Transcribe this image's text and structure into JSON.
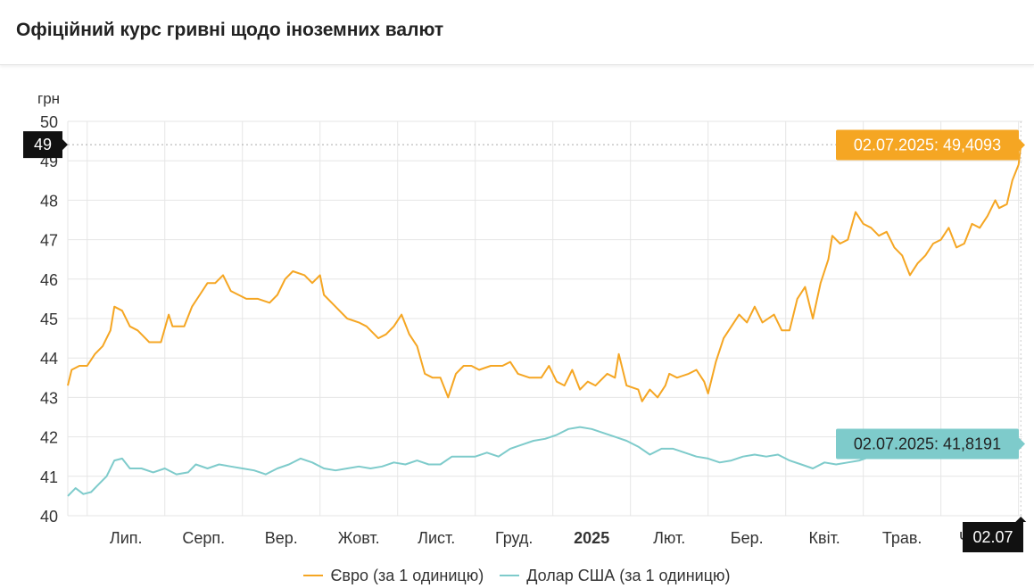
{
  "header": {
    "title": "Офіційний курс гривні щодо іноземних валют"
  },
  "chart_data": {
    "type": "line",
    "ylabel": "грн",
    "ylim": [
      40,
      50
    ],
    "yticks": [
      40,
      41,
      42,
      43,
      44,
      45,
      46,
      47,
      48,
      49,
      50
    ],
    "xticks": [
      {
        "label": "Лип.",
        "x": 0.5,
        "bold": false
      },
      {
        "label": "Серп.",
        "x": 1.5,
        "bold": false
      },
      {
        "label": "Вер.",
        "x": 2.5,
        "bold": false
      },
      {
        "label": "Жовт.",
        "x": 3.5,
        "bold": false
      },
      {
        "label": "Лист.",
        "x": 4.5,
        "bold": false
      },
      {
        "label": "Груд.",
        "x": 5.5,
        "bold": false
      },
      {
        "label": "2025",
        "x": 6.5,
        "bold": true
      },
      {
        "label": "Лют.",
        "x": 7.5,
        "bold": false
      },
      {
        "label": "Бер.",
        "x": 8.5,
        "bold": false
      },
      {
        "label": "Квіт.",
        "x": 9.5,
        "bold": false
      },
      {
        "label": "Трав.",
        "x": 10.5,
        "bold": false
      },
      {
        "label": "Черв.",
        "x": 11.5,
        "bold": false
      }
    ],
    "x_unit": "months since Jul 1, 2024",
    "xlim": [
      -0.25,
      12.05
    ],
    "crosshair": {
      "y_label": "49",
      "y_value": 49.4093,
      "x_label": "02.07",
      "x_value": 12.03
    },
    "series": [
      {
        "name": "Євро (за 1 одиницю)",
        "color": "#f5a623",
        "tooltip": "02.07.2025: 49,4093",
        "points": [
          [
            -0.25,
            43.3
          ],
          [
            -0.2,
            43.7
          ],
          [
            -0.1,
            43.8
          ],
          [
            0.0,
            43.8
          ],
          [
            0.1,
            44.1
          ],
          [
            0.2,
            44.3
          ],
          [
            0.3,
            44.7
          ],
          [
            0.35,
            45.3
          ],
          [
            0.45,
            45.2
          ],
          [
            0.55,
            44.8
          ],
          [
            0.65,
            44.7
          ],
          [
            0.8,
            44.4
          ],
          [
            0.95,
            44.4
          ],
          [
            1.05,
            45.1
          ],
          [
            1.1,
            44.8
          ],
          [
            1.25,
            44.8
          ],
          [
            1.35,
            45.3
          ],
          [
            1.45,
            45.6
          ],
          [
            1.55,
            45.9
          ],
          [
            1.65,
            45.9
          ],
          [
            1.75,
            46.1
          ],
          [
            1.85,
            45.7
          ],
          [
            1.95,
            45.6
          ],
          [
            2.05,
            45.5
          ],
          [
            2.2,
            45.5
          ],
          [
            2.35,
            45.4
          ],
          [
            2.45,
            45.6
          ],
          [
            2.55,
            46.0
          ],
          [
            2.65,
            46.2
          ],
          [
            2.8,
            46.1
          ],
          [
            2.9,
            45.9
          ],
          [
            3.0,
            46.1
          ],
          [
            3.05,
            45.6
          ],
          [
            3.2,
            45.3
          ],
          [
            3.35,
            45.0
          ],
          [
            3.5,
            44.9
          ],
          [
            3.6,
            44.8
          ],
          [
            3.75,
            44.5
          ],
          [
            3.85,
            44.6
          ],
          [
            3.95,
            44.8
          ],
          [
            4.05,
            45.1
          ],
          [
            4.15,
            44.6
          ],
          [
            4.25,
            44.3
          ],
          [
            4.35,
            43.6
          ],
          [
            4.45,
            43.5
          ],
          [
            4.55,
            43.5
          ],
          [
            4.65,
            43.0
          ],
          [
            4.75,
            43.6
          ],
          [
            4.85,
            43.8
          ],
          [
            4.95,
            43.8
          ],
          [
            5.05,
            43.7
          ],
          [
            5.2,
            43.8
          ],
          [
            5.35,
            43.8
          ],
          [
            5.45,
            43.9
          ],
          [
            5.55,
            43.6
          ],
          [
            5.7,
            43.5
          ],
          [
            5.85,
            43.5
          ],
          [
            5.95,
            43.8
          ],
          [
            6.05,
            43.4
          ],
          [
            6.15,
            43.3
          ],
          [
            6.25,
            43.7
          ],
          [
            6.35,
            43.2
          ],
          [
            6.45,
            43.4
          ],
          [
            6.55,
            43.3
          ],
          [
            6.7,
            43.6
          ],
          [
            6.8,
            43.5
          ],
          [
            6.85,
            44.1
          ],
          [
            6.95,
            43.3
          ],
          [
            7.1,
            43.2
          ],
          [
            7.15,
            42.9
          ],
          [
            7.25,
            43.2
          ],
          [
            7.35,
            43.0
          ],
          [
            7.45,
            43.3
          ],
          [
            7.5,
            43.6
          ],
          [
            7.6,
            43.5
          ],
          [
            7.75,
            43.6
          ],
          [
            7.85,
            43.7
          ],
          [
            7.95,
            43.4
          ],
          [
            8.0,
            43.1
          ],
          [
            8.1,
            43.9
          ],
          [
            8.2,
            44.5
          ],
          [
            8.3,
            44.8
          ],
          [
            8.4,
            45.1
          ],
          [
            8.5,
            44.9
          ],
          [
            8.6,
            45.3
          ],
          [
            8.7,
            44.9
          ],
          [
            8.85,
            45.1
          ],
          [
            8.95,
            44.7
          ],
          [
            9.05,
            44.7
          ],
          [
            9.15,
            45.5
          ],
          [
            9.25,
            45.8
          ],
          [
            9.35,
            45.0
          ],
          [
            9.45,
            45.9
          ],
          [
            9.55,
            46.5
          ],
          [
            9.6,
            47.1
          ],
          [
            9.7,
            46.9
          ],
          [
            9.8,
            47.0
          ],
          [
            9.9,
            47.7
          ],
          [
            10.0,
            47.4
          ],
          [
            10.1,
            47.3
          ],
          [
            10.2,
            47.1
          ],
          [
            10.3,
            47.2
          ],
          [
            10.4,
            46.8
          ],
          [
            10.5,
            46.6
          ],
          [
            10.6,
            46.1
          ],
          [
            10.7,
            46.4
          ],
          [
            10.8,
            46.6
          ],
          [
            10.9,
            46.9
          ],
          [
            11.0,
            47.0
          ],
          [
            11.1,
            47.3
          ],
          [
            11.2,
            46.8
          ],
          [
            11.3,
            46.9
          ],
          [
            11.4,
            47.4
          ],
          [
            11.5,
            47.3
          ],
          [
            11.6,
            47.6
          ],
          [
            11.7,
            48.0
          ],
          [
            11.75,
            47.8
          ],
          [
            11.85,
            47.9
          ],
          [
            11.92,
            48.5
          ],
          [
            12.0,
            48.9
          ],
          [
            12.03,
            49.4
          ]
        ]
      },
      {
        "name": "Долар США (за 1 одиницю)",
        "color": "#7ecbcb",
        "tooltip": "02.07.2025: 41,8191",
        "points": [
          [
            -0.25,
            40.5
          ],
          [
            -0.15,
            40.7
          ],
          [
            -0.05,
            40.55
          ],
          [
            0.05,
            40.6
          ],
          [
            0.15,
            40.8
          ],
          [
            0.25,
            41.0
          ],
          [
            0.35,
            41.4
          ],
          [
            0.45,
            41.45
          ],
          [
            0.55,
            41.2
          ],
          [
            0.7,
            41.2
          ],
          [
            0.85,
            41.1
          ],
          [
            1.0,
            41.2
          ],
          [
            1.15,
            41.05
          ],
          [
            1.3,
            41.1
          ],
          [
            1.4,
            41.3
          ],
          [
            1.55,
            41.2
          ],
          [
            1.7,
            41.3
          ],
          [
            1.85,
            41.25
          ],
          [
            2.0,
            41.2
          ],
          [
            2.15,
            41.15
          ],
          [
            2.3,
            41.05
          ],
          [
            2.45,
            41.2
          ],
          [
            2.6,
            41.3
          ],
          [
            2.75,
            41.45
          ],
          [
            2.9,
            41.35
          ],
          [
            3.05,
            41.2
          ],
          [
            3.2,
            41.15
          ],
          [
            3.35,
            41.2
          ],
          [
            3.5,
            41.25
          ],
          [
            3.65,
            41.2
          ],
          [
            3.8,
            41.25
          ],
          [
            3.95,
            41.35
          ],
          [
            4.1,
            41.3
          ],
          [
            4.25,
            41.4
          ],
          [
            4.4,
            41.3
          ],
          [
            4.55,
            41.3
          ],
          [
            4.7,
            41.5
          ],
          [
            4.85,
            41.5
          ],
          [
            5.0,
            41.5
          ],
          [
            5.15,
            41.6
          ],
          [
            5.3,
            41.5
          ],
          [
            5.45,
            41.7
          ],
          [
            5.6,
            41.8
          ],
          [
            5.75,
            41.9
          ],
          [
            5.9,
            41.95
          ],
          [
            6.05,
            42.05
          ],
          [
            6.2,
            42.2
          ],
          [
            6.35,
            42.25
          ],
          [
            6.5,
            42.2
          ],
          [
            6.65,
            42.1
          ],
          [
            6.8,
            42.0
          ],
          [
            6.95,
            41.9
          ],
          [
            7.1,
            41.75
          ],
          [
            7.25,
            41.55
          ],
          [
            7.4,
            41.7
          ],
          [
            7.55,
            41.7
          ],
          [
            7.7,
            41.6
          ],
          [
            7.85,
            41.5
          ],
          [
            8.0,
            41.45
          ],
          [
            8.15,
            41.35
          ],
          [
            8.3,
            41.4
          ],
          [
            8.45,
            41.5
          ],
          [
            8.6,
            41.55
          ],
          [
            8.75,
            41.5
          ],
          [
            8.9,
            41.55
          ],
          [
            9.05,
            41.4
          ],
          [
            9.2,
            41.3
          ],
          [
            9.35,
            41.2
          ],
          [
            9.5,
            41.35
          ],
          [
            9.65,
            41.3
          ],
          [
            9.8,
            41.35
          ],
          [
            9.95,
            41.4
          ],
          [
            10.1,
            41.5
          ],
          [
            10.25,
            41.55
          ],
          [
            10.4,
            41.6
          ],
          [
            10.55,
            41.55
          ],
          [
            10.7,
            41.6
          ],
          [
            10.85,
            41.6
          ],
          [
            11.0,
            41.55
          ],
          [
            11.15,
            41.55
          ],
          [
            11.3,
            41.6
          ],
          [
            11.45,
            41.6
          ],
          [
            11.6,
            41.65
          ],
          [
            11.75,
            41.7
          ],
          [
            11.9,
            41.75
          ],
          [
            12.03,
            41.82
          ]
        ]
      }
    ],
    "grid": true,
    "legend_position": "bottom"
  },
  "legend": [
    {
      "label": "Євро (за 1 одиницю)",
      "color": "#f5a623"
    },
    {
      "label": "Долар США (за 1 одиницю)",
      "color": "#7ecbcb"
    }
  ]
}
